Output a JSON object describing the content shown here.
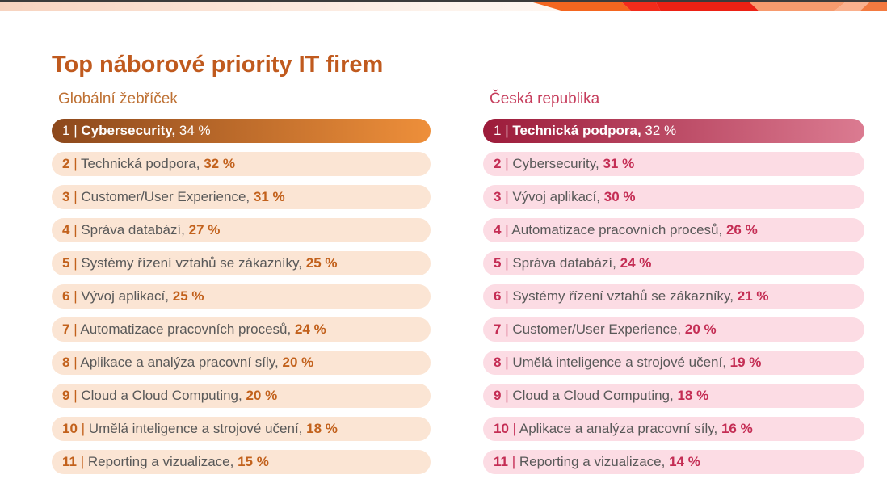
{
  "page": {
    "title": "Top náborové priority IT firem",
    "title_color": "#C05A1E",
    "background": "#FFFFFF"
  },
  "top_band": {
    "dark_line_color": "#3B3B3B",
    "left_gradient": [
      "#F7D3BF",
      "#FDF3EC",
      "#FFFFFF"
    ],
    "segments": [
      "#F4661F",
      "#F22C1B",
      "#EC2114",
      "#F79B6E",
      "#FAB18E",
      "#F37A40"
    ]
  },
  "label_color": "#595959",
  "columns": [
    {
      "id": "global",
      "header": "Globální žebříček",
      "header_color": "#BE7134",
      "accent": "#C2611C",
      "row_bg": "#FBE5D4",
      "top_gradient_start": "#8C481C",
      "top_gradient_end": "#EE8F3A",
      "items": [
        {
          "rank": "1",
          "label": "Cybersecurity,",
          "value": "34 %"
        },
        {
          "rank": "2",
          "label": "Technická podpora,",
          "value": "32 %"
        },
        {
          "rank": "3",
          "label": "Customer/User Experience,",
          "value": "31 %"
        },
        {
          "rank": "4",
          "label": "Správa databází,",
          "value": "27 %"
        },
        {
          "rank": "5",
          "label": "Systémy řízení vztahů se zákazníky,",
          "value": "25 %"
        },
        {
          "rank": "6",
          "label": "Vývoj aplikací,",
          "value": "25 %"
        },
        {
          "rank": "7",
          "label": "Automatizace pracovních procesů,",
          "value": "24 %"
        },
        {
          "rank": "8",
          "label": "Aplikace a analýza pracovní síly,",
          "value": "20 %"
        },
        {
          "rank": "9",
          "label": "Cloud a Cloud Computing,",
          "value": "20 %"
        },
        {
          "rank": "10",
          "label": "Umělá inteligence a strojové učení,",
          "value": "18 %"
        },
        {
          "rank": "11",
          "label": "Reporting a vizualizace,",
          "value": "15 %"
        }
      ]
    },
    {
      "id": "czech",
      "header": "Česká republika",
      "header_color": "#C63D5C",
      "accent": "#C42D54",
      "row_bg": "#FCDCE4",
      "top_gradient_start": "#9C1B3A",
      "top_gradient_end": "#DB7B91",
      "items": [
        {
          "rank": "1",
          "label": "Technická podpora,",
          "value": "32 %"
        },
        {
          "rank": "2",
          "label": "Cybersecurity,",
          "value": "31 %"
        },
        {
          "rank": "3",
          "label": "Vývoj aplikací,",
          "value": "30 %"
        },
        {
          "rank": "4",
          "label": "Automatizace pracovních procesů,",
          "value": "26 %"
        },
        {
          "rank": "5",
          "label": "Správa databází,",
          "value": "24 %"
        },
        {
          "rank": "6",
          "label": "Systémy řízení vztahů se zákazníky,",
          "value": "21 %"
        },
        {
          "rank": "7",
          "label": "Customer/User Experience,",
          "value": "20 %"
        },
        {
          "rank": "8",
          "label": "Umělá inteligence a strojové učení,",
          "value": "19 %"
        },
        {
          "rank": "9",
          "label": "Cloud a Cloud Computing,",
          "value": "18 %"
        },
        {
          "rank": "10",
          "label": "Aplikace a analýza pracovní síly,",
          "value": "16 %"
        },
        {
          "rank": "11",
          "label": "Reporting a vizualizace,",
          "value": "14 %"
        }
      ]
    }
  ],
  "chart_data": {
    "type": "table",
    "title": "Top náborové priority IT firem",
    "unit": "%",
    "series": [
      {
        "name": "Globální žebříček",
        "categories": [
          "Cybersecurity",
          "Technická podpora",
          "Customer/User Experience",
          "Správa databází",
          "Systémy řízení vztahů se zákazníky",
          "Vývoj aplikací",
          "Automatizace pracovních procesů",
          "Aplikace a analýza pracovní síly",
          "Cloud a Cloud Computing",
          "Umělá inteligence a strojové učení",
          "Reporting a vizualizace"
        ],
        "values": [
          34,
          32,
          31,
          27,
          25,
          25,
          24,
          20,
          20,
          18,
          15
        ]
      },
      {
        "name": "Česká republika",
        "categories": [
          "Technická podpora",
          "Cybersecurity",
          "Vývoj aplikací",
          "Automatizace pracovních procesů",
          "Správa databází",
          "Systémy řízení vztahů se zákazníky",
          "Customer/User Experience",
          "Umělá inteligence a strojové učení",
          "Cloud a Cloud Computing",
          "Aplikace a analýza pracovní síly",
          "Reporting a vizualizace"
        ],
        "values": [
          32,
          31,
          30,
          26,
          24,
          21,
          20,
          19,
          18,
          16,
          14
        ]
      }
    ]
  }
}
